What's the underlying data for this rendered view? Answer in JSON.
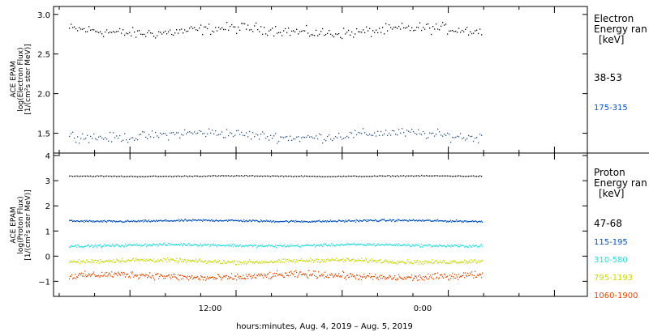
{
  "chart_data": [
    {
      "type": "scatter",
      "panel": "electron",
      "ylabel_lines": [
        "ACE EPAM",
        "log(Electron Flux)",
        "[1/(cm²s ster MeV)]"
      ],
      "ylim": [
        1.25,
        3.1
      ],
      "yticks": [
        1.5,
        2.0,
        2.5,
        3.0
      ],
      "ytick_labels": [
        "1.5",
        "2.0",
        "2.5",
        "3.0"
      ],
      "legend_title": [
        "Electron",
        "Energy ran",
        "[keV]"
      ],
      "series": [
        {
          "name": "38-53",
          "color": "#000000",
          "mean": 2.8,
          "spread": 0.1,
          "dots_per_col": 1
        },
        {
          "name": "175-315",
          "color": "#0055cc",
          "mean": 1.48,
          "spread": 0.09,
          "dots_per_col": 1
        }
      ]
    },
    {
      "type": "scatter",
      "panel": "proton",
      "ylabel_lines": [
        "ACE EPAM",
        "log(Proton Flux)",
        "[1/(cm²s ster MeV)]"
      ],
      "ylim": [
        -1.6,
        4.1
      ],
      "yticks": [
        -1,
        0,
        1,
        2,
        3,
        4
      ],
      "ytick_labels": [
        "−1",
        "0",
        "1",
        "2",
        "3",
        "4"
      ],
      "legend_title": [
        "Proton",
        "Energy ran",
        "[keV]"
      ],
      "series": [
        {
          "name": "47-68",
          "color": "#000000",
          "mean": 3.2,
          "spread": 0.03,
          "dots_per_col": 1
        },
        {
          "name": "115-195",
          "color": "#0050c0",
          "mean": 1.42,
          "spread": 0.06,
          "dots_per_col": 2
        },
        {
          "name": "310-580",
          "color": "#22dddd",
          "mean": 0.45,
          "spread": 0.08,
          "dots_per_col": 2
        },
        {
          "name": "795-1193",
          "color": "#c8d800",
          "mean": -0.18,
          "spread": 0.12,
          "dots_per_col": 2
        },
        {
          "name": "1060-1900",
          "color": "#e84800",
          "mean": -0.78,
          "spread": 0.2,
          "dots_per_col": 2
        }
      ]
    }
  ],
  "x_axis": {
    "label": "hours:minutes, Aug.  4, 2019 – Aug.  5, 2019",
    "ticks": [
      "12:00",
      "0:00"
    ]
  }
}
